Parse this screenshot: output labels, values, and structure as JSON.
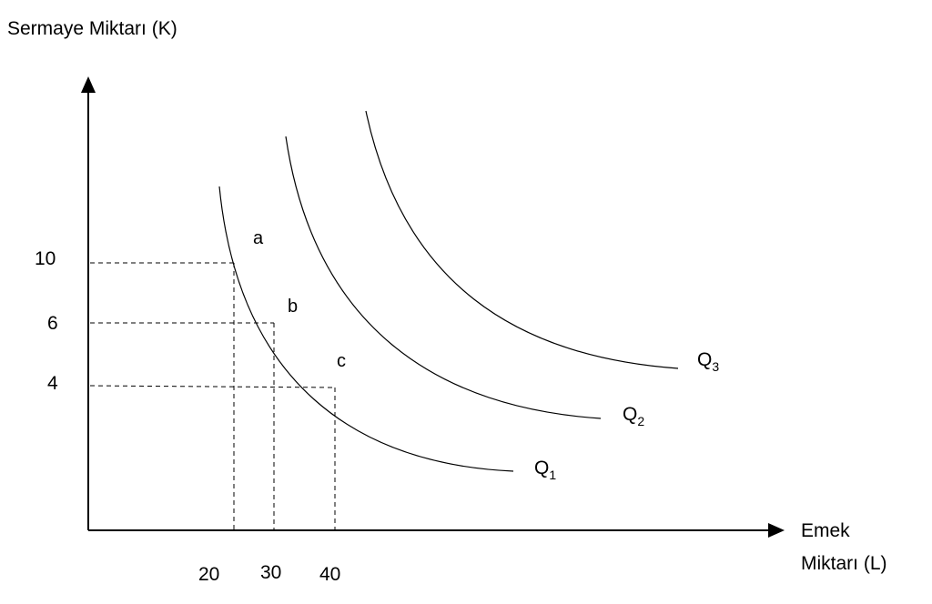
{
  "chart_data": {
    "type": "line",
    "title": "",
    "ylabel": "Sermaye Miktarı (K)",
    "xlabel_line1": "Emek",
    "xlabel_line2": "Miktarı (L)",
    "x_ticks": [
      "20",
      "30",
      "40"
    ],
    "y_ticks": [
      "10",
      "6",
      "4"
    ],
    "x_tick_values": [
      20,
      30,
      40
    ],
    "y_tick_values": [
      10,
      6,
      4
    ],
    "points": [
      {
        "label": "a",
        "x": 20,
        "y": 10
      },
      {
        "label": "b",
        "x": 30,
        "y": 6
      },
      {
        "label": "c",
        "x": 40,
        "y": 4
      }
    ],
    "series": [
      {
        "label_main": "Q",
        "label_sub": "1"
      },
      {
        "label_main": "Q",
        "label_sub": "2"
      },
      {
        "label_main": "Q",
        "label_sub": "3"
      }
    ],
    "grid": false,
    "guides": "dashed"
  }
}
